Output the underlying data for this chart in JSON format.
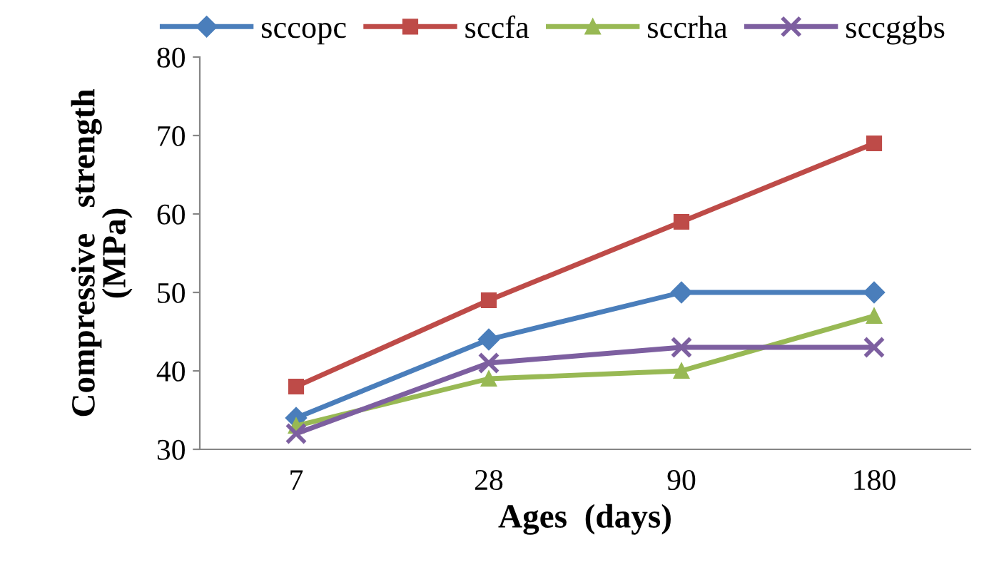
{
  "chart_data": {
    "type": "line",
    "xlabel": "Ages  (days)",
    "ylabel": "Compressive   strength\n(MPa)",
    "categories": [
      "7",
      "28",
      "90",
      "180"
    ],
    "series": [
      {
        "name": "sccopc",
        "color": "#4a7ebb",
        "marker": "diamond",
        "values": [
          34,
          44,
          50,
          50
        ]
      },
      {
        "name": "sccfa",
        "color": "#be4b48",
        "marker": "square",
        "values": [
          38,
          49,
          59,
          69
        ]
      },
      {
        "name": "sccrha",
        "color": "#98b954",
        "marker": "triangle",
        "values": [
          33,
          39,
          40,
          47
        ]
      },
      {
        "name": "sccggbs",
        "color": "#7d5fa0",
        "marker": "cross",
        "values": [
          32,
          41,
          43,
          43
        ]
      }
    ],
    "ylim": [
      30,
      80
    ],
    "yticks": [
      30,
      40,
      50,
      60,
      70,
      80
    ],
    "grid": false,
    "legend": "top",
    "line_style": "solid"
  }
}
